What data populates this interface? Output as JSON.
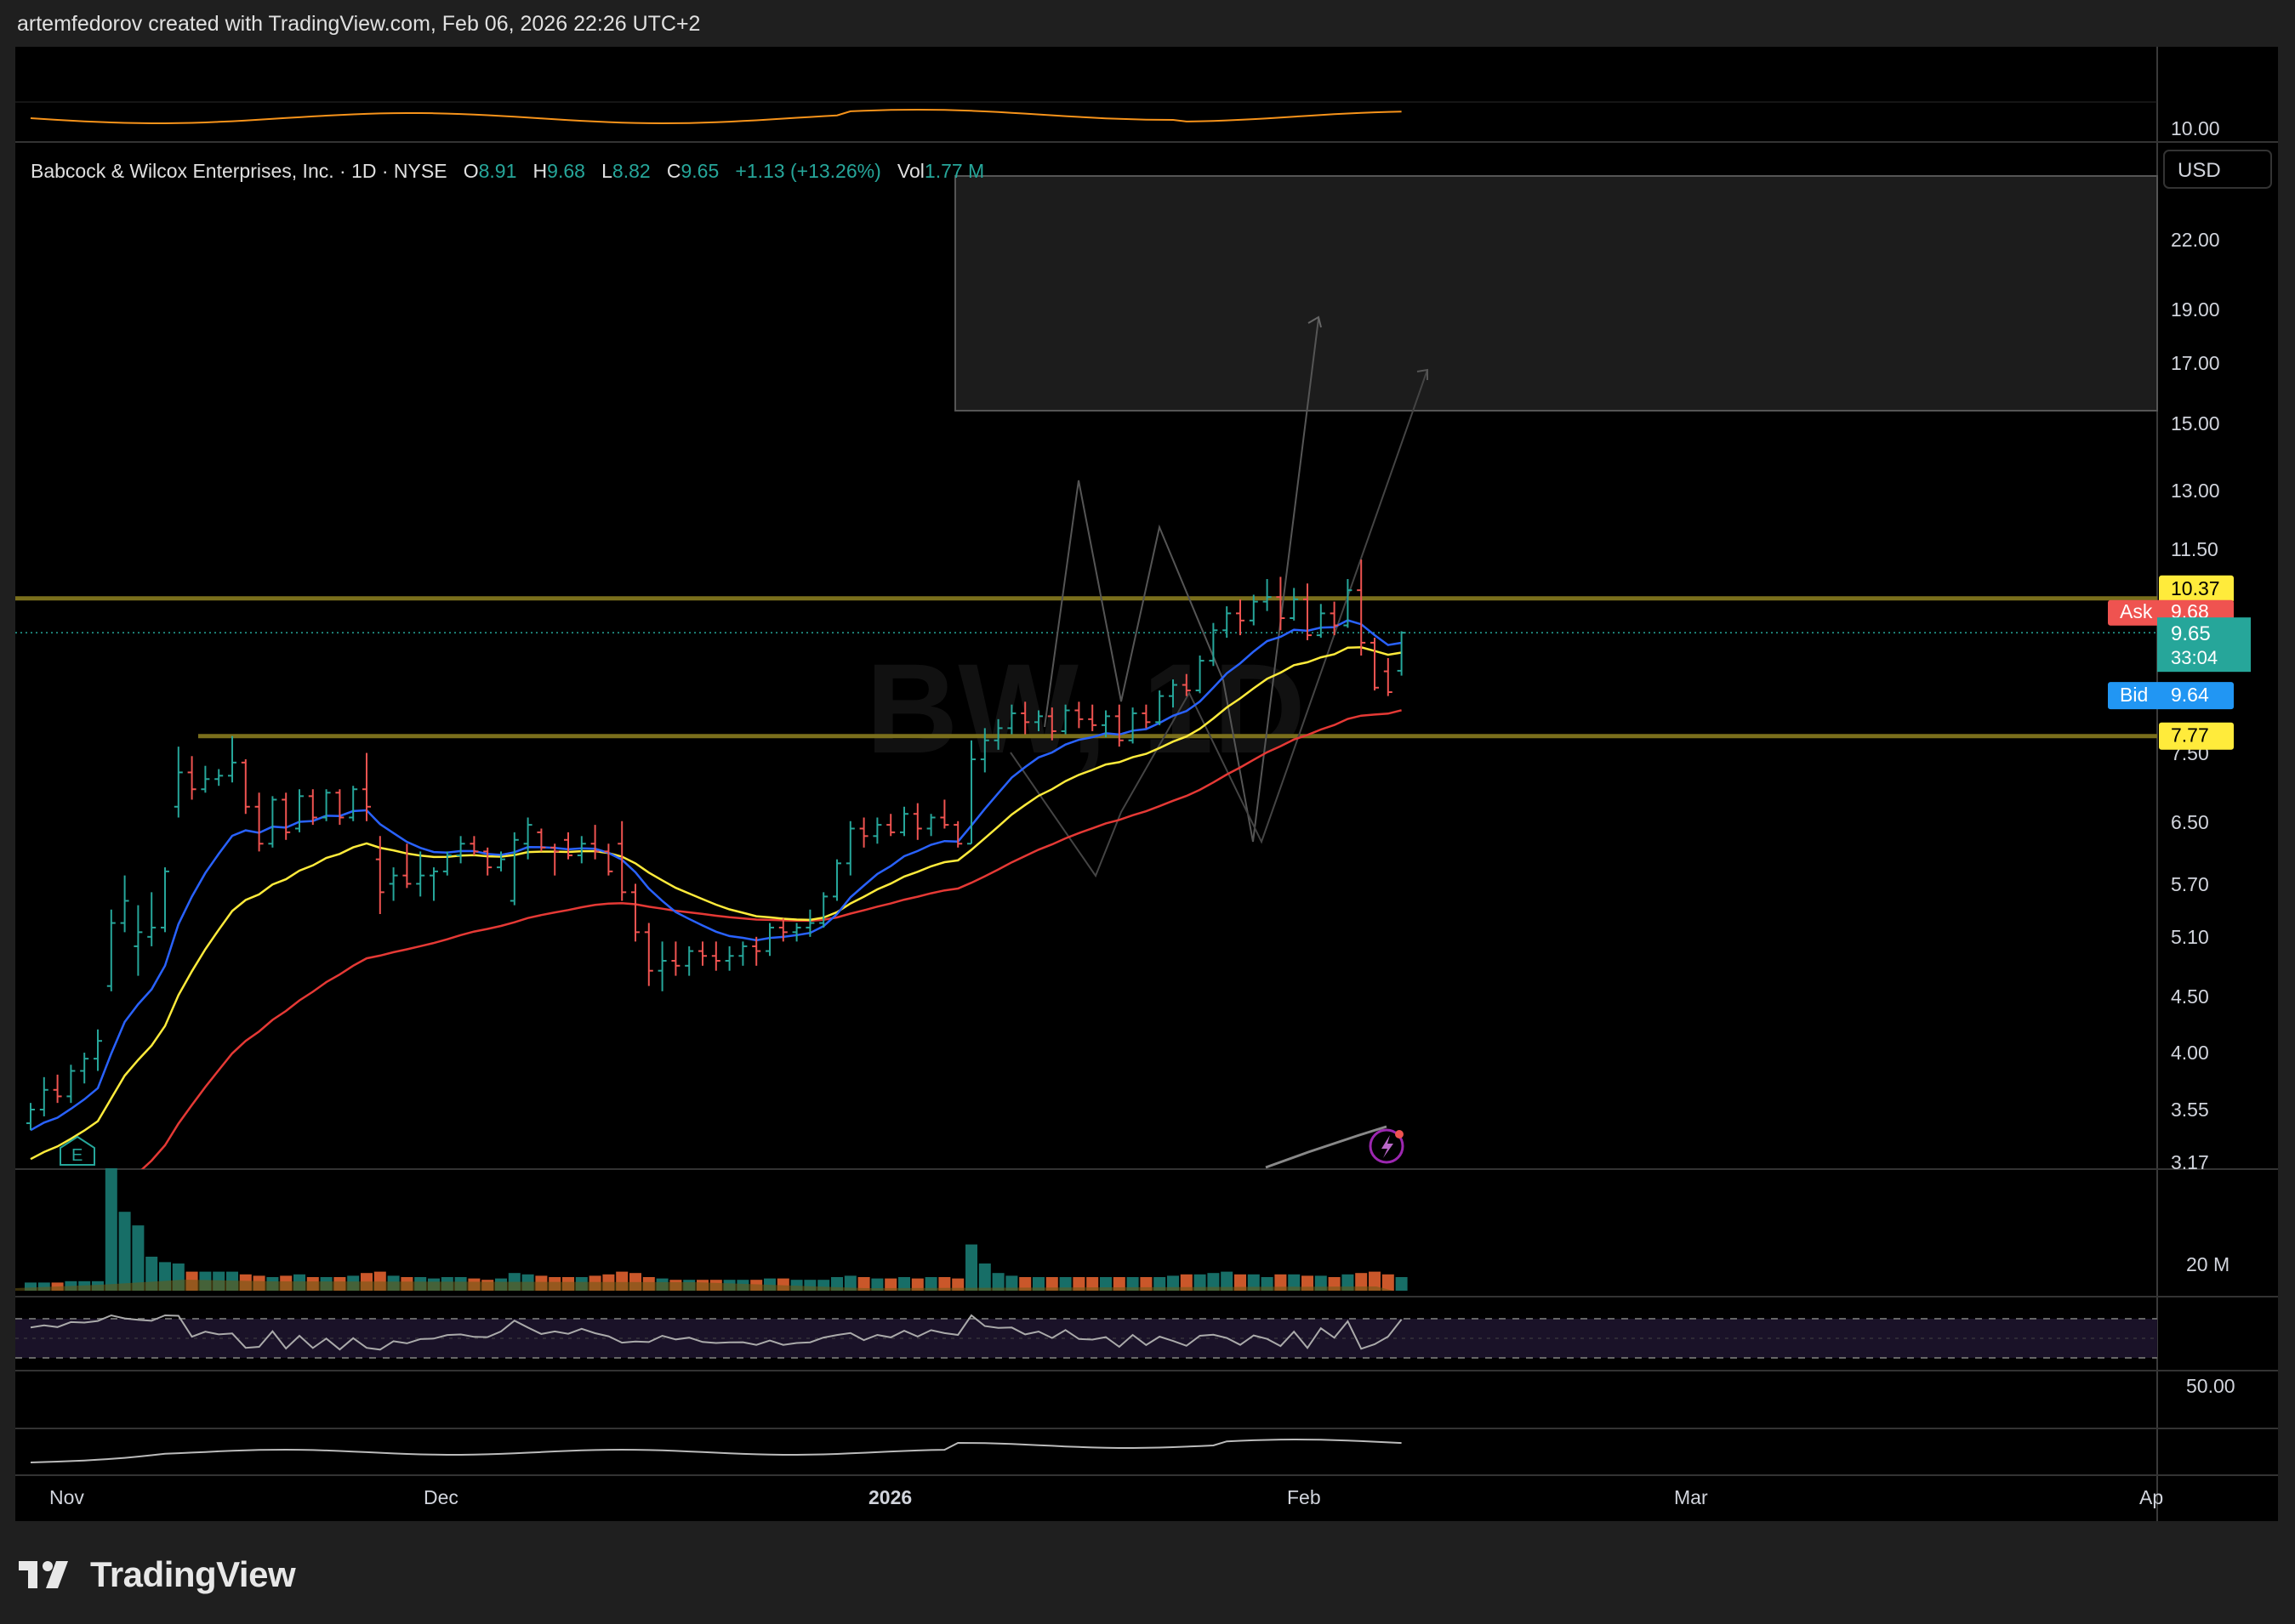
{
  "header": {
    "text": "artemfedorov created with TradingView.com, Feb 06, 2026 22:26 UTC+2"
  },
  "brand": {
    "name": "TradingView"
  },
  "legend": {
    "symbol": "Babcock & Wilcox Enterprises, Inc. · 1D · NYSE",
    "o_label": "O",
    "o": "8.91",
    "h_label": "H",
    "h": "9.68",
    "l_label": "L",
    "l": "8.82",
    "c_label": "C",
    "c": "9.65",
    "change": "+1.13 (+13.26%)",
    "vol_label": "Vol",
    "vol": "1.77 M"
  },
  "watermark": "BW, 1D",
  "currency": "USD",
  "price_labels": {
    "resistance": "10.37",
    "ask_label": "Ask",
    "ask": "9.68",
    "last": "9.65",
    "countdown": "33:04",
    "bid_label": "Bid",
    "bid": "9.64",
    "support": "7.77"
  },
  "colors": {
    "up": "#26a69a",
    "down": "#ef5350",
    "ema_fast": "#2962ff",
    "ema_mid": "#ffeb3b",
    "ema_slow": "#e53935",
    "level": "#7a6f1c",
    "osc_top": "#f7931a"
  },
  "chart_data": {
    "type": "candlestick",
    "title": "",
    "y_scale": "log",
    "ylim": [
      3.17,
      25
    ],
    "y_ticks": [
      "22.00",
      "19.00",
      "17.00",
      "15.00",
      "13.00",
      "11.50",
      "7.50",
      "6.50",
      "5.70",
      "5.10",
      "4.50",
      "4.00",
      "3.55",
      "3.17"
    ],
    "top_panel_tick": "10.00",
    "volume_tick": "20 M",
    "rsi_tick": "50.00",
    "x_ticks": [
      "Nov",
      "Dec",
      "2026",
      "Feb",
      "Mar",
      "Ap"
    ],
    "ohlc": [
      {
        "o": 3.45,
        "h": 3.6,
        "l": 3.4,
        "c": 3.55
      },
      {
        "o": 3.55,
        "h": 3.8,
        "l": 3.5,
        "c": 3.7
      },
      {
        "o": 3.7,
        "h": 3.82,
        "l": 3.6,
        "c": 3.65
      },
      {
        "o": 3.65,
        "h": 3.9,
        "l": 3.6,
        "c": 3.85
      },
      {
        "o": 3.85,
        "h": 4.0,
        "l": 3.75,
        "c": 3.95
      },
      {
        "o": 3.95,
        "h": 4.2,
        "l": 3.85,
        "c": 4.1
      },
      {
        "o": 4.6,
        "h": 5.4,
        "l": 4.55,
        "c": 5.25
      },
      {
        "o": 5.25,
        "h": 5.8,
        "l": 5.15,
        "c": 5.5
      },
      {
        "o": 5.0,
        "h": 5.45,
        "l": 4.7,
        "c": 5.15
      },
      {
        "o": 5.1,
        "h": 5.6,
        "l": 5.0,
        "c": 5.2
      },
      {
        "o": 5.2,
        "h": 5.9,
        "l": 5.15,
        "c": 5.85
      },
      {
        "o": 6.7,
        "h": 7.6,
        "l": 6.55,
        "c": 7.2
      },
      {
        "o": 7.2,
        "h": 7.45,
        "l": 6.8,
        "c": 6.95
      },
      {
        "o": 6.95,
        "h": 7.3,
        "l": 6.9,
        "c": 7.1
      },
      {
        "o": 7.1,
        "h": 7.25,
        "l": 7.0,
        "c": 7.15
      },
      {
        "o": 7.15,
        "h": 7.77,
        "l": 7.05,
        "c": 7.35
      },
      {
        "o": 7.35,
        "h": 7.4,
        "l": 6.6,
        "c": 6.7
      },
      {
        "o": 6.7,
        "h": 6.9,
        "l": 6.1,
        "c": 6.2
      },
      {
        "o": 6.2,
        "h": 6.85,
        "l": 6.15,
        "c": 6.8
      },
      {
        "o": 6.8,
        "h": 6.9,
        "l": 6.25,
        "c": 6.35
      },
      {
        "o": 6.4,
        "h": 6.95,
        "l": 6.35,
        "c": 6.85
      },
      {
        "o": 6.85,
        "h": 6.95,
        "l": 6.45,
        "c": 6.55
      },
      {
        "o": 6.55,
        "h": 6.95,
        "l": 6.5,
        "c": 6.9
      },
      {
        "o": 6.9,
        "h": 6.95,
        "l": 6.45,
        "c": 6.55
      },
      {
        "o": 6.55,
        "h": 7.0,
        "l": 6.5,
        "c": 6.95
      },
      {
        "o": 6.95,
        "h": 7.5,
        "l": 6.5,
        "c": 6.7
      },
      {
        "o": 6.0,
        "h": 6.3,
        "l": 5.35,
        "c": 5.6
      },
      {
        "o": 5.7,
        "h": 5.9,
        "l": 5.5,
        "c": 5.8
      },
      {
        "o": 5.8,
        "h": 6.2,
        "l": 5.65,
        "c": 5.7
      },
      {
        "o": 5.7,
        "h": 6.1,
        "l": 5.55,
        "c": 5.8
      },
      {
        "o": 5.8,
        "h": 5.9,
        "l": 5.5,
        "c": 5.85
      },
      {
        "o": 5.85,
        "h": 6.1,
        "l": 5.8,
        "c": 6.05
      },
      {
        "o": 6.05,
        "h": 6.3,
        "l": 5.95,
        "c": 6.2
      },
      {
        "o": 6.2,
        "h": 6.3,
        "l": 6.05,
        "c": 6.1
      },
      {
        "o": 6.1,
        "h": 6.15,
        "l": 5.8,
        "c": 5.9
      },
      {
        "o": 5.9,
        "h": 6.1,
        "l": 5.85,
        "c": 6.0
      },
      {
        "o": 5.5,
        "h": 6.35,
        "l": 5.45,
        "c": 6.25
      },
      {
        "o": 6.2,
        "h": 6.55,
        "l": 6.0,
        "c": 6.45
      },
      {
        "o": 6.35,
        "h": 6.4,
        "l": 6.1,
        "c": 6.15
      },
      {
        "o": 6.15,
        "h": 6.2,
        "l": 5.8,
        "c": 6.1
      },
      {
        "o": 6.25,
        "h": 6.35,
        "l": 6.0,
        "c": 6.05
      },
      {
        "o": 6.05,
        "h": 6.3,
        "l": 5.95,
        "c": 6.2
      },
      {
        "o": 6.2,
        "h": 6.45,
        "l": 6.0,
        "c": 6.1
      },
      {
        "o": 6.1,
        "h": 6.2,
        "l": 5.8,
        "c": 5.85
      },
      {
        "o": 6.2,
        "h": 6.5,
        "l": 5.5,
        "c": 5.6
      },
      {
        "o": 5.6,
        "h": 5.7,
        "l": 5.05,
        "c": 5.15
      },
      {
        "o": 5.15,
        "h": 5.25,
        "l": 4.6,
        "c": 4.75
      },
      {
        "o": 4.75,
        "h": 5.05,
        "l": 4.55,
        "c": 4.85
      },
      {
        "o": 4.85,
        "h": 5.05,
        "l": 4.7,
        "c": 4.8
      },
      {
        "o": 4.8,
        "h": 5.0,
        "l": 4.7,
        "c": 4.95
      },
      {
        "o": 4.95,
        "h": 5.05,
        "l": 4.8,
        "c": 4.9
      },
      {
        "o": 4.9,
        "h": 5.05,
        "l": 4.75,
        "c": 4.85
      },
      {
        "o": 4.85,
        "h": 5.0,
        "l": 4.75,
        "c": 4.9
      },
      {
        "o": 4.9,
        "h": 5.05,
        "l": 4.8,
        "c": 5.0
      },
      {
        "o": 5.0,
        "h": 5.1,
        "l": 4.8,
        "c": 4.95
      },
      {
        "o": 4.95,
        "h": 5.25,
        "l": 4.9,
        "c": 5.2
      },
      {
        "o": 5.2,
        "h": 5.3,
        "l": 5.05,
        "c": 5.15
      },
      {
        "o": 5.15,
        "h": 5.25,
        "l": 5.05,
        "c": 5.2
      },
      {
        "o": 5.2,
        "h": 5.4,
        "l": 5.1,
        "c": 5.25
      },
      {
        "o": 5.25,
        "h": 5.6,
        "l": 5.2,
        "c": 5.55
      },
      {
        "o": 5.55,
        "h": 6.0,
        "l": 5.5,
        "c": 5.95
      },
      {
        "o": 5.95,
        "h": 6.5,
        "l": 5.8,
        "c": 6.4
      },
      {
        "o": 6.4,
        "h": 6.55,
        "l": 6.15,
        "c": 6.3
      },
      {
        "o": 6.3,
        "h": 6.55,
        "l": 6.2,
        "c": 6.45
      },
      {
        "o": 6.45,
        "h": 6.6,
        "l": 6.3,
        "c": 6.35
      },
      {
        "o": 6.35,
        "h": 6.7,
        "l": 6.3,
        "c": 6.6
      },
      {
        "o": 6.6,
        "h": 6.75,
        "l": 6.25,
        "c": 6.4
      },
      {
        "o": 6.4,
        "h": 6.6,
        "l": 6.3,
        "c": 6.55
      },
      {
        "o": 6.55,
        "h": 6.8,
        "l": 6.4,
        "c": 6.45
      },
      {
        "o": 6.45,
        "h": 6.5,
        "l": 6.15,
        "c": 6.2
      },
      {
        "o": 6.2,
        "h": 7.7,
        "l": 6.2,
        "c": 7.4
      },
      {
        "o": 7.4,
        "h": 7.9,
        "l": 7.2,
        "c": 7.7
      },
      {
        "o": 7.7,
        "h": 8.05,
        "l": 7.55,
        "c": 7.9
      },
      {
        "o": 7.9,
        "h": 8.3,
        "l": 7.8,
        "c": 8.15
      },
      {
        "o": 8.15,
        "h": 8.35,
        "l": 7.8,
        "c": 8.0
      },
      {
        "o": 8.0,
        "h": 8.2,
        "l": 7.85,
        "c": 8.1
      },
      {
        "o": 8.1,
        "h": 8.25,
        "l": 7.7,
        "c": 7.85
      },
      {
        "o": 7.85,
        "h": 8.3,
        "l": 7.8,
        "c": 8.2
      },
      {
        "o": 8.2,
        "h": 8.35,
        "l": 7.9,
        "c": 8.05
      },
      {
        "o": 8.05,
        "h": 8.3,
        "l": 7.85,
        "c": 7.95
      },
      {
        "o": 7.95,
        "h": 8.2,
        "l": 7.75,
        "c": 8.1
      },
      {
        "o": 8.1,
        "h": 8.3,
        "l": 7.6,
        "c": 7.7
      },
      {
        "o": 7.7,
        "h": 8.25,
        "l": 7.65,
        "c": 8.15
      },
      {
        "o": 8.15,
        "h": 8.3,
        "l": 7.9,
        "c": 8.0
      },
      {
        "o": 8.0,
        "h": 8.55,
        "l": 7.95,
        "c": 8.45
      },
      {
        "o": 8.45,
        "h": 8.75,
        "l": 8.25,
        "c": 8.65
      },
      {
        "o": 8.65,
        "h": 8.85,
        "l": 8.45,
        "c": 8.55
      },
      {
        "o": 8.55,
        "h": 9.2,
        "l": 8.5,
        "c": 9.1
      },
      {
        "o": 9.1,
        "h": 9.85,
        "l": 9.0,
        "c": 9.7
      },
      {
        "o": 9.7,
        "h": 10.2,
        "l": 9.55,
        "c": 10.05
      },
      {
        "o": 10.05,
        "h": 10.35,
        "l": 9.6,
        "c": 9.9
      },
      {
        "o": 9.9,
        "h": 10.45,
        "l": 9.8,
        "c": 10.3
      },
      {
        "o": 10.3,
        "h": 10.8,
        "l": 10.1,
        "c": 10.4
      },
      {
        "o": 10.4,
        "h": 10.85,
        "l": 9.7,
        "c": 9.95
      },
      {
        "o": 9.95,
        "h": 10.6,
        "l": 9.9,
        "c": 10.35
      },
      {
        "o": 10.35,
        "h": 10.7,
        "l": 9.5,
        "c": 9.6
      },
      {
        "o": 9.6,
        "h": 10.25,
        "l": 9.55,
        "c": 10.05
      },
      {
        "o": 10.05,
        "h": 10.3,
        "l": 9.6,
        "c": 9.8
      },
      {
        "o": 9.8,
        "h": 10.8,
        "l": 9.75,
        "c": 10.55
      },
      {
        "o": 10.55,
        "h": 11.25,
        "l": 9.2,
        "c": 9.45
      },
      {
        "o": 9.45,
        "h": 9.55,
        "l": 8.55,
        "c": 8.6
      },
      {
        "o": 8.9,
        "h": 9.15,
        "l": 8.45,
        "c": 8.52
      },
      {
        "o": 8.91,
        "h": 9.68,
        "l": 8.82,
        "c": 9.65
      }
    ]
  }
}
